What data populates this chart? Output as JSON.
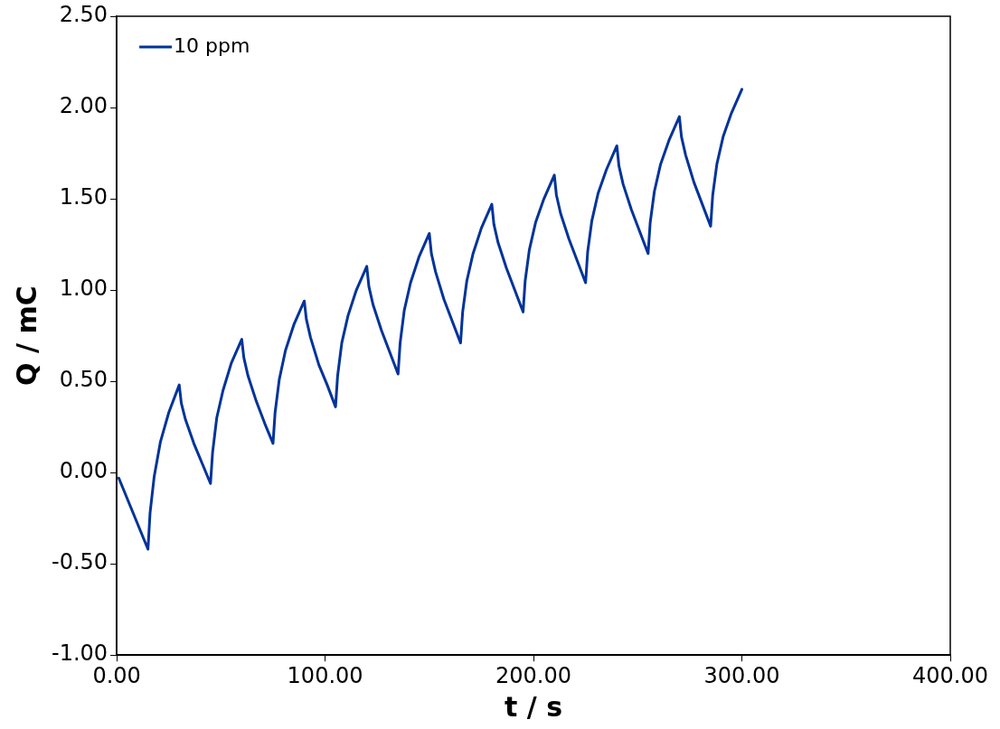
{
  "chart_data": {
    "type": "line",
    "xlabel": "t / s",
    "ylabel": "Q / mC",
    "xlim": [
      0,
      400
    ],
    "xticks": [
      {
        "value": 0,
        "label": "0.00"
      },
      {
        "value": 100,
        "label": "100.00"
      },
      {
        "value": 200,
        "label": "200.00"
      },
      {
        "value": 300,
        "label": "300.00"
      },
      {
        "value": 400,
        "label": "400.00"
      }
    ],
    "ylim": [
      -1,
      2.5
    ],
    "yticks": [
      {
        "value": -1,
        "label": "-1.00"
      },
      {
        "value": -0.5,
        "label": "-0.50"
      },
      {
        "value": 0,
        "label": "0.00"
      },
      {
        "value": 0.5,
        "label": "0.50"
      },
      {
        "value": 1,
        "label": "1.00"
      },
      {
        "value": 1.5,
        "label": "1.50"
      },
      {
        "value": 2,
        "label": "2.00"
      },
      {
        "value": 2.5,
        "label": "2.50"
      }
    ],
    "grid": false,
    "legend": "top left",
    "marker": "none",
    "line_style": "solid",
    "series": [
      {
        "name": "10 ppm",
        "color": "#003399",
        "x": [
          1,
          15,
          16,
          18,
          21,
          25,
          30,
          31,
          33,
          37,
          41,
          45,
          46,
          48,
          51,
          55,
          60,
          61,
          63,
          67,
          71,
          75,
          76,
          78,
          81,
          85,
          90,
          91,
          93,
          97,
          101,
          105,
          106,
          108,
          111,
          115,
          120,
          121,
          123,
          127,
          131,
          135,
          136,
          138,
          141,
          145,
          150,
          151,
          153,
          157,
          161,
          165,
          166,
          168,
          171,
          175,
          180,
          181,
          183,
          187,
          191,
          195,
          196,
          198,
          201,
          205,
          210,
          211,
          213,
          217,
          221,
          225,
          226,
          228,
          231,
          235,
          240,
          241,
          243,
          247,
          251,
          255,
          256,
          258,
          261,
          265,
          270,
          271,
          273,
          277,
          281,
          285,
          286,
          288,
          291,
          295,
          300
        ],
        "values": [
          -0.03,
          -0.42,
          -0.22,
          -0.02,
          0.17,
          0.33,
          0.48,
          0.38,
          0.29,
          0.16,
          0.05,
          -0.06,
          0.11,
          0.3,
          0.45,
          0.6,
          0.73,
          0.63,
          0.53,
          0.39,
          0.27,
          0.16,
          0.33,
          0.51,
          0.67,
          0.81,
          0.94,
          0.84,
          0.74,
          0.59,
          0.48,
          0.36,
          0.53,
          0.71,
          0.86,
          1.0,
          1.13,
          1.02,
          0.92,
          0.78,
          0.66,
          0.54,
          0.71,
          0.89,
          1.04,
          1.18,
          1.31,
          1.2,
          1.1,
          0.95,
          0.83,
          0.71,
          0.88,
          1.05,
          1.2,
          1.34,
          1.47,
          1.36,
          1.26,
          1.12,
          1.0,
          0.88,
          1.05,
          1.22,
          1.37,
          1.5,
          1.63,
          1.52,
          1.42,
          1.28,
          1.16,
          1.04,
          1.21,
          1.38,
          1.53,
          1.66,
          1.79,
          1.68,
          1.58,
          1.44,
          1.32,
          1.2,
          1.37,
          1.54,
          1.69,
          1.82,
          1.95,
          1.84,
          1.74,
          1.59,
          1.47,
          1.35,
          1.52,
          1.69,
          1.84,
          1.97,
          2.1
        ]
      }
    ]
  }
}
